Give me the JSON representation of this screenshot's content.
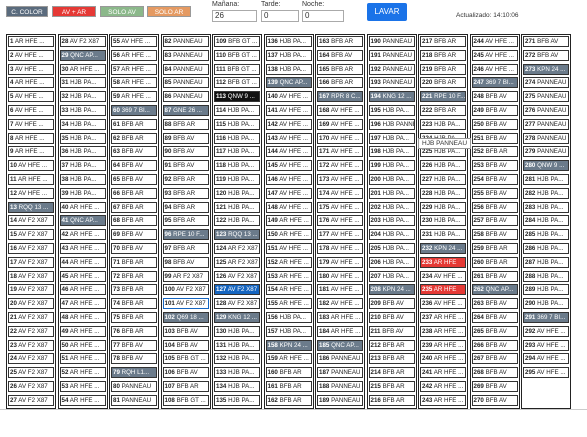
{
  "filters": [
    {
      "label": "C. COLOR",
      "color": "#5a6b7d"
    },
    {
      "label": "AV + AR",
      "color": "#e53935"
    },
    {
      "label": "SOLO AV",
      "color": "#8bb88a"
    },
    {
      "label": "SOLO AR",
      "color": "#e59a62"
    }
  ],
  "shifts": [
    {
      "label": "Mañana:",
      "value": "26"
    },
    {
      "label": "Tarde:",
      "value": "0"
    },
    {
      "label": "Noche:",
      "value": "0"
    }
  ],
  "lavar_label": "LAVAR",
  "updated": "Actualizado: 14:10:06",
  "tooltip": "HJB PANNEAU",
  "columns": [
    [
      [
        "1",
        "AR HFE ...",
        ""
      ],
      [
        "2",
        "AV HFE ...",
        ""
      ],
      [
        "3",
        "AV HFE ...",
        ""
      ],
      [
        "4",
        "AR HFE ...",
        ""
      ],
      [
        "5",
        "AV HFE ...",
        ""
      ],
      [
        "6",
        "AV HFE ...",
        ""
      ],
      [
        "7",
        "AV HFE ...",
        ""
      ],
      [
        "8",
        "AR HFE ...",
        ""
      ],
      [
        "9",
        "AR HFE ...",
        ""
      ],
      [
        "10",
        "AV HFE ...",
        ""
      ],
      [
        "11",
        "AR HFE ...",
        ""
      ],
      [
        "12",
        "AV HFE ...",
        ""
      ],
      [
        "13",
        "RQQ 13 ...",
        "gray"
      ],
      [
        "14",
        "AV F2 X87",
        ""
      ],
      [
        "15",
        "AV F2 X87",
        ""
      ],
      [
        "16",
        "AV F2 X87",
        ""
      ],
      [
        "17",
        "AV F2 X87",
        ""
      ],
      [
        "18",
        "AV F2 X87",
        ""
      ],
      [
        "19",
        "AV F2 X87",
        ""
      ],
      [
        "20",
        "AV F2 X87",
        ""
      ],
      [
        "21",
        "AV F2 X87",
        ""
      ],
      [
        "22",
        "AV F2 X87",
        ""
      ],
      [
        "23",
        "AV F2 X87",
        ""
      ],
      [
        "24",
        "AV F2 X87",
        ""
      ],
      [
        "25",
        "AV F2 X87",
        ""
      ],
      [
        "26",
        "AV F2 X87",
        ""
      ],
      [
        "27",
        "AV F2 X87",
        ""
      ]
    ],
    [
      [
        "28",
        "AV F2 X87",
        ""
      ],
      [
        "29",
        "QNC AP...",
        "gray"
      ],
      [
        "30",
        "AR HFE ...",
        ""
      ],
      [
        "31",
        "HJB PA...",
        ""
      ],
      [
        "32",
        "HJB PA...",
        ""
      ],
      [
        "33",
        "HJB PA...",
        ""
      ],
      [
        "34",
        "HJB PA...",
        ""
      ],
      [
        "35",
        "HJB PA...",
        ""
      ],
      [
        "36",
        "HJB PA...",
        ""
      ],
      [
        "37",
        "HJB PA...",
        ""
      ],
      [
        "38",
        "HJB PA...",
        ""
      ],
      [
        "39",
        "HJB PA...",
        ""
      ],
      [
        "40",
        "AR HFE ...",
        ""
      ],
      [
        "41",
        "QNC AP...",
        "gray"
      ],
      [
        "42",
        "AR HFE ...",
        ""
      ],
      [
        "43",
        "AR HFE ...",
        ""
      ],
      [
        "44",
        "AR HFE ...",
        ""
      ],
      [
        "45",
        "AR HFE ...",
        ""
      ],
      [
        "46",
        "AR HFE ...",
        ""
      ],
      [
        "47",
        "AR HFE ...",
        ""
      ],
      [
        "48",
        "AR HFE ...",
        ""
      ],
      [
        "49",
        "AR HFE ...",
        ""
      ],
      [
        "50",
        "AR HFE ...",
        ""
      ],
      [
        "51",
        "AR HFE ...",
        ""
      ],
      [
        "52",
        "AR HFE ...",
        ""
      ],
      [
        "53",
        "AR HFE ...",
        ""
      ],
      [
        "54",
        "AR HFE ...",
        ""
      ]
    ],
    [
      [
        "55",
        "AV HFE ...",
        ""
      ],
      [
        "56",
        "AR HFE ...",
        ""
      ],
      [
        "57",
        "AR HFE ...",
        ""
      ],
      [
        "58",
        "AR HFE ...",
        ""
      ],
      [
        "59",
        "AR HFE ...",
        ""
      ],
      [
        "60",
        "369 7 BI...",
        "gray"
      ],
      [
        "61",
        "BFB AR",
        ""
      ],
      [
        "62",
        "BFB AR",
        ""
      ],
      [
        "63",
        "BFB AV",
        ""
      ],
      [
        "64",
        "BFB AV",
        ""
      ],
      [
        "65",
        "BFB AV",
        ""
      ],
      [
        "66",
        "BFB AR",
        ""
      ],
      [
        "67",
        "BFB AR",
        ""
      ],
      [
        "68",
        "BFB AR",
        ""
      ],
      [
        "69",
        "BFB AV",
        ""
      ],
      [
        "70",
        "BFB AV",
        ""
      ],
      [
        "71",
        "BFB AR",
        ""
      ],
      [
        "72",
        "BFB AR",
        ""
      ],
      [
        "73",
        "BFB AR",
        ""
      ],
      [
        "74",
        "BFB AR",
        ""
      ],
      [
        "75",
        "BFB AR",
        ""
      ],
      [
        "76",
        "BFB AR",
        ""
      ],
      [
        "77",
        "BFB AV",
        ""
      ],
      [
        "78",
        "BFB AV",
        ""
      ],
      [
        "79",
        "RQH L1...",
        "gray"
      ],
      [
        "80",
        "PANNEAU",
        ""
      ],
      [
        "81",
        "PANNEAU",
        ""
      ]
    ],
    [
      [
        "82",
        "PANNEAU",
        ""
      ],
      [
        "83",
        "PANNEAU",
        ""
      ],
      [
        "84",
        "PANNEAU",
        ""
      ],
      [
        "85",
        "PANNEAU",
        ""
      ],
      [
        "86",
        "PANNEAU",
        ""
      ],
      [
        "87",
        "GNE 26 ...",
        "gray"
      ],
      [
        "88",
        "BFB AR",
        ""
      ],
      [
        "89",
        "BFB AV",
        ""
      ],
      [
        "90",
        "BFB AV",
        ""
      ],
      [
        "91",
        "BFB AV",
        ""
      ],
      [
        "92",
        "BFB AR",
        ""
      ],
      [
        "93",
        "BFB AR",
        ""
      ],
      [
        "94",
        "BFB AR",
        ""
      ],
      [
        "95",
        "BFB AR",
        ""
      ],
      [
        "96",
        "RPE 10 F...",
        "gray"
      ],
      [
        "97",
        "BFB AR",
        ""
      ],
      [
        "98",
        "BFB AV",
        ""
      ],
      [
        "99",
        "AR F2 X87",
        ""
      ],
      [
        "100",
        "AV F2 X87",
        ""
      ],
      [
        "101",
        "AV F2 X87",
        "selected"
      ],
      [
        "102",
        "Q69 18 ...",
        "gray"
      ],
      [
        "103",
        "BFB AV",
        ""
      ],
      [
        "104",
        "BFB AV",
        ""
      ],
      [
        "105",
        "BFB GT ...",
        ""
      ],
      [
        "106",
        "BFB AV",
        ""
      ],
      [
        "107",
        "BFB AR",
        ""
      ],
      [
        "108",
        "BFB GT ...",
        ""
      ]
    ],
    [
      [
        "109",
        "BFB GT ...",
        ""
      ],
      [
        "110",
        "BFB GT ...",
        ""
      ],
      [
        "111",
        "BFB GT ...",
        ""
      ],
      [
        "112",
        "BFB GT ...",
        ""
      ],
      [
        "113",
        "QNW 9 ...",
        "black"
      ],
      [
        "114",
        "HJB PA...",
        ""
      ],
      [
        "115",
        "HJB PA...",
        ""
      ],
      [
        "116",
        "HJB PA...",
        ""
      ],
      [
        "117",
        "HJB PA...",
        ""
      ],
      [
        "118",
        "HJB PA...",
        ""
      ],
      [
        "119",
        "HJB PA...",
        ""
      ],
      [
        "120",
        "HJB PA...",
        ""
      ],
      [
        "121",
        "HJB PA...",
        ""
      ],
      [
        "122",
        "HJB PA...",
        ""
      ],
      [
        "123",
        "RQQ 13 ...",
        "gray"
      ],
      [
        "124",
        "AR F2 X87",
        ""
      ],
      [
        "125",
        "AR F2 X87",
        ""
      ],
      [
        "126",
        "AV F2 X87",
        ""
      ],
      [
        "127",
        "AV F2 X87",
        "blue"
      ],
      [
        "128",
        "AV F2 X87",
        ""
      ],
      [
        "129",
        "KNG 12 ...",
        "gray"
      ],
      [
        "130",
        "HJB PA...",
        ""
      ],
      [
        "131",
        "HJB PA...",
        ""
      ],
      [
        "132",
        "HJB PA...",
        ""
      ],
      [
        "133",
        "HJB PA...",
        ""
      ],
      [
        "134",
        "HJB PA...",
        ""
      ],
      [
        "135",
        "HJB PA...",
        ""
      ]
    ],
    [
      [
        "136",
        "HJB PA...",
        ""
      ],
      [
        "137",
        "HJB PA...",
        ""
      ],
      [
        "138",
        "HJB PA...",
        ""
      ],
      [
        "139",
        "QNC AP...",
        "gray"
      ],
      [
        "140",
        "AV HFE ...",
        ""
      ],
      [
        "141",
        "AV HFE ...",
        ""
      ],
      [
        "142",
        "AV HFE ...",
        ""
      ],
      [
        "143",
        "AV HFE ...",
        ""
      ],
      [
        "144",
        "AV HFE ...",
        ""
      ],
      [
        "145",
        "AV HFE ...",
        ""
      ],
      [
        "146",
        "AV HFE ...",
        ""
      ],
      [
        "147",
        "AV HFE ...",
        ""
      ],
      [
        "148",
        "AV HFE ...",
        ""
      ],
      [
        "149",
        "AR HFE ...",
        ""
      ],
      [
        "150",
        "AR HFE ...",
        ""
      ],
      [
        "151",
        "AV HFE ...",
        ""
      ],
      [
        "152",
        "AR HFE ...",
        ""
      ],
      [
        "153",
        "AR HFE ...",
        ""
      ],
      [
        "154",
        "AR HFE ...",
        ""
      ],
      [
        "155",
        "AR HFE ...",
        ""
      ],
      [
        "156",
        "HJB PA...",
        ""
      ],
      [
        "157",
        "HJB PA...",
        ""
      ],
      [
        "158",
        "KPN 24 ...",
        "gray"
      ],
      [
        "159",
        "AR HFE ...",
        ""
      ],
      [
        "160",
        "BFB AR",
        ""
      ],
      [
        "161",
        "BFB AR",
        ""
      ],
      [
        "162",
        "BFB AR",
        ""
      ]
    ],
    [
      [
        "163",
        "BFB AR",
        ""
      ],
      [
        "164",
        "BFB AV",
        ""
      ],
      [
        "165",
        "BFB AR",
        ""
      ],
      [
        "166",
        "BFB AR",
        ""
      ],
      [
        "167",
        "RPR 8 C...",
        "gray"
      ],
      [
        "168",
        "AV HFE ...",
        ""
      ],
      [
        "169",
        "AV HFE ...",
        ""
      ],
      [
        "170",
        "AV HFE ...",
        ""
      ],
      [
        "171",
        "AV HFE ...",
        ""
      ],
      [
        "172",
        "AV HFE ...",
        ""
      ],
      [
        "173",
        "AV HFE ...",
        ""
      ],
      [
        "174",
        "AV HFE ...",
        ""
      ],
      [
        "175",
        "AV HFE ...",
        ""
      ],
      [
        "176",
        "AV HFE ...",
        ""
      ],
      [
        "177",
        "AV HFE ...",
        ""
      ],
      [
        "178",
        "AV HFE ...",
        ""
      ],
      [
        "179",
        "AV HFE ...",
        ""
      ],
      [
        "180",
        "AV HFE ...",
        ""
      ],
      [
        "181",
        "AV HFE ...",
        ""
      ],
      [
        "182",
        "AV HFE ...",
        ""
      ],
      [
        "183",
        "AR HFE ...",
        ""
      ],
      [
        "184",
        "AR HFE ...",
        ""
      ],
      [
        "185",
        "QNC AP...",
        "gray"
      ],
      [
        "186",
        "PANNEAU",
        ""
      ],
      [
        "187",
        "PANNEAU",
        ""
      ],
      [
        "188",
        "PANNEAU",
        ""
      ],
      [
        "189",
        "PANNEAU",
        ""
      ]
    ],
    [
      [
        "190",
        "PANNEAU",
        ""
      ],
      [
        "191",
        "PANNEAU",
        ""
      ],
      [
        "192",
        "PANNEAU",
        ""
      ],
      [
        "193",
        "PANNEAU",
        ""
      ],
      [
        "194",
        "KNG 12 ...",
        "gray"
      ],
      [
        "195",
        "HJB PA...",
        ""
      ],
      [
        "196",
        "HJB PANNEAU",
        ""
      ],
      [
        "197",
        "HJB PA...",
        ""
      ],
      [
        "198",
        "HJB PA...",
        ""
      ],
      [
        "199",
        "HJB PA...",
        ""
      ],
      [
        "200",
        "HJB PA...",
        ""
      ],
      [
        "201",
        "HJB PA...",
        ""
      ],
      [
        "202",
        "HJB PA...",
        ""
      ],
      [
        "203",
        "HJB PA...",
        ""
      ],
      [
        "204",
        "HJB PA...",
        ""
      ],
      [
        "205",
        "HJB PA...",
        ""
      ],
      [
        "206",
        "HJB PA...",
        ""
      ],
      [
        "207",
        "HJB PA...",
        ""
      ],
      [
        "208",
        "KPN 24 ...",
        "gray"
      ],
      [
        "209",
        "BFB AV",
        ""
      ],
      [
        "210",
        "BFB AV",
        ""
      ],
      [
        "211",
        "BFB AV",
        ""
      ],
      [
        "212",
        "BFB AR",
        ""
      ],
      [
        "213",
        "BFB AR",
        ""
      ],
      [
        "214",
        "BFB AR",
        ""
      ],
      [
        "215",
        "BFB AR",
        ""
      ],
      [
        "216",
        "BFB AR",
        ""
      ]
    ],
    [
      [
        "217",
        "BFB AR",
        ""
      ],
      [
        "218",
        "BFB AR",
        ""
      ],
      [
        "219",
        "BFB AR",
        ""
      ],
      [
        "220",
        "BFB AR",
        ""
      ],
      [
        "221",
        "RPE 10 F...",
        "gray"
      ],
      [
        "222",
        "BFB AR",
        ""
      ],
      [
        "223",
        "HJB PA...",
        ""
      ],
      [
        "224",
        "HJB PA...",
        ""
      ],
      [
        "225",
        "HJB PA...",
        ""
      ],
      [
        "226",
        "HJB PA...",
        ""
      ],
      [
        "227",
        "HJB PA...",
        ""
      ],
      [
        "228",
        "HJB PA...",
        ""
      ],
      [
        "229",
        "HJB PA...",
        ""
      ],
      [
        "230",
        "HJB PA...",
        ""
      ],
      [
        "231",
        "HJB PA...",
        ""
      ],
      [
        "232",
        "KPN 24 ...",
        "gray"
      ],
      [
        "233",
        "AR HFE",
        "red"
      ],
      [
        "234",
        "AV HFE ...",
        ""
      ],
      [
        "235",
        "AR HFE",
        "red"
      ],
      [
        "236",
        "AV HFE ...",
        ""
      ],
      [
        "237",
        "AR HFE ...",
        ""
      ],
      [
        "238",
        "AR HFE ...",
        ""
      ],
      [
        "239",
        "AR HFE ...",
        ""
      ],
      [
        "240",
        "AR HFE ...",
        ""
      ],
      [
        "241",
        "AR HFE ...",
        ""
      ],
      [
        "242",
        "AR HFE ...",
        ""
      ],
      [
        "243",
        "AR HFE ...",
        ""
      ]
    ],
    [
      [
        "244",
        "AV HFE ...",
        ""
      ],
      [
        "245",
        "AV HFE ...",
        ""
      ],
      [
        "246",
        "AV HFE ...",
        ""
      ],
      [
        "247",
        "369 7 BI...",
        "gray"
      ],
      [
        "248",
        "BFB AV",
        ""
      ],
      [
        "249",
        "BFB AV",
        ""
      ],
      [
        "250",
        "BFB AV",
        ""
      ],
      [
        "251",
        "BFB AV",
        ""
      ],
      [
        "252",
        "BFB AR",
        ""
      ],
      [
        "253",
        "BFB AV",
        ""
      ],
      [
        "254",
        "BFB AV",
        ""
      ],
      [
        "255",
        "BFB AV",
        ""
      ],
      [
        "256",
        "BFB AV",
        ""
      ],
      [
        "257",
        "BFB AV",
        ""
      ],
      [
        "258",
        "BFB AV",
        ""
      ],
      [
        "259",
        "BFB AR",
        ""
      ],
      [
        "260",
        "BFB AR",
        ""
      ],
      [
        "261",
        "BFB AV",
        ""
      ],
      [
        "262",
        "QNC AP...",
        "gray"
      ],
      [
        "263",
        "BFB AV",
        ""
      ],
      [
        "264",
        "BFB AV",
        ""
      ],
      [
        "265",
        "BFB AV",
        ""
      ],
      [
        "266",
        "BFB AV",
        ""
      ],
      [
        "267",
        "BFB AV",
        ""
      ],
      [
        "268",
        "BFB AV",
        ""
      ],
      [
        "269",
        "BFB AV",
        ""
      ],
      [
        "270",
        "BFB AV",
        ""
      ]
    ],
    [
      [
        "271",
        "BFB AV",
        ""
      ],
      [
        "272",
        "BFB AV",
        ""
      ],
      [
        "273",
        "KPN 24 ...",
        "gray"
      ],
      [
        "274",
        "PANNEAU",
        ""
      ],
      [
        "275",
        "PANNEAU",
        ""
      ],
      [
        "276",
        "PANNEAU",
        ""
      ],
      [
        "277",
        "PANNEAU",
        ""
      ],
      [
        "278",
        "PANNEAU",
        ""
      ],
      [
        "279",
        "PANNEAU",
        ""
      ],
      [
        "280",
        "QNW 9 ...",
        "gray"
      ],
      [
        "281",
        "HJB PA...",
        ""
      ],
      [
        "282",
        "HJB PA...",
        ""
      ],
      [
        "283",
        "HJB PA...",
        ""
      ],
      [
        "284",
        "HJB PA...",
        ""
      ],
      [
        "285",
        "HJB PA...",
        ""
      ],
      [
        "286",
        "HJB PA...",
        ""
      ],
      [
        "287",
        "HJB PA...",
        ""
      ],
      [
        "288",
        "HJB PA...",
        ""
      ],
      [
        "289",
        "HJB PA...",
        ""
      ],
      [
        "290",
        "HJB PA...",
        ""
      ],
      [
        "291",
        "369 7 BI...",
        "gray"
      ],
      [
        "292",
        "AV HFE ...",
        ""
      ],
      [
        "293",
        "AV HFE ...",
        ""
      ],
      [
        "294",
        "AV HFE ...",
        ""
      ],
      [
        "295",
        "AV HFE ...",
        ""
      ]
    ]
  ]
}
